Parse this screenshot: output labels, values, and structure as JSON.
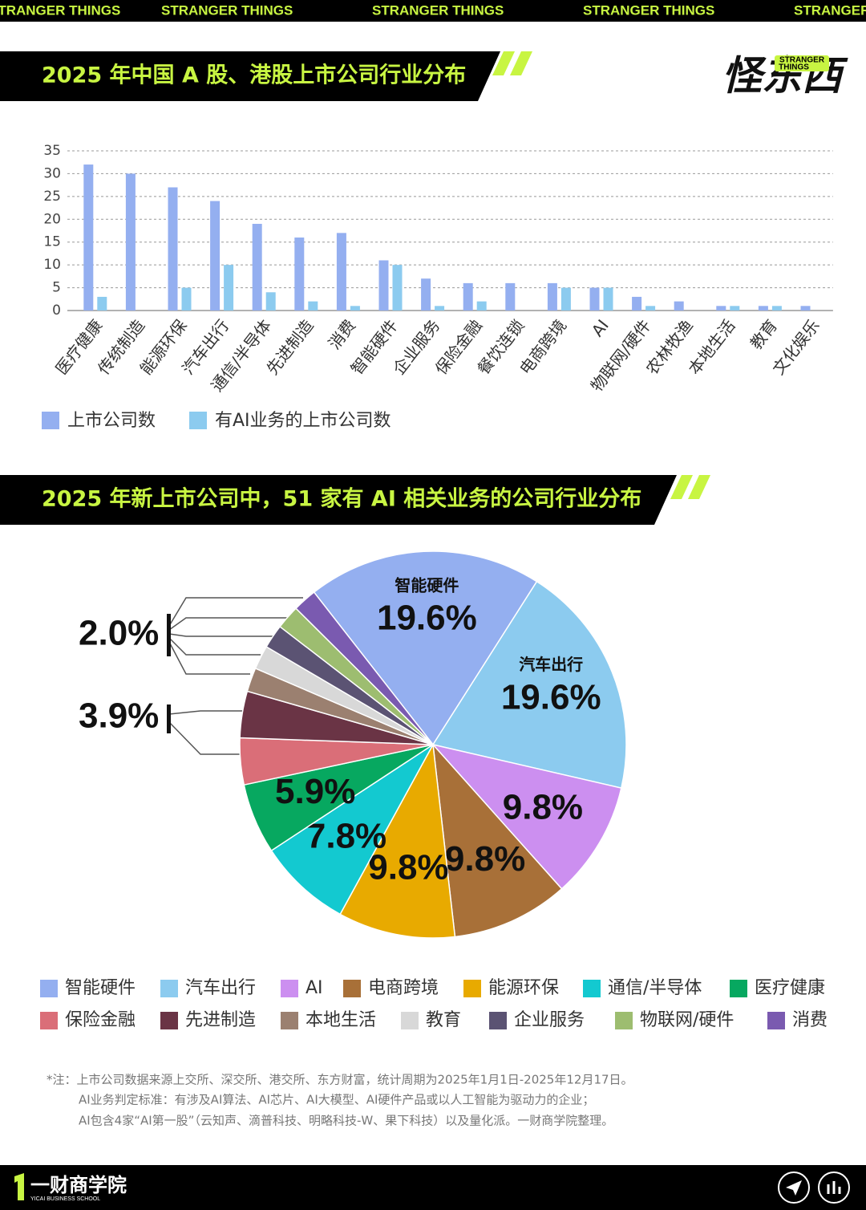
{
  "banner": "STRANGER THINGS",
  "logo": {
    "name": "怪东西",
    "tag": [
      "STRANGER",
      "THINGS"
    ]
  },
  "chart_data": [
    {
      "type": "bar",
      "title": "2025 年中国 A 股、港股上市公司行业分布",
      "categories": [
        "医疗健康",
        "传统制造",
        "能源环保",
        "汽车出行",
        "通信/半导体",
        "先进制造",
        "消费",
        "智能硬件",
        "企业服务",
        "保险金融",
        "餐饮连锁",
        "电商跨境",
        "AI",
        "物联网/硬件",
        "农林牧渔",
        "本地生活",
        "教育",
        "文化娱乐"
      ],
      "series": [
        {
          "name": "上市公司数",
          "color": "#94aff0",
          "values": [
            32,
            30,
            27,
            24,
            19,
            16,
            17,
            11,
            7,
            6,
            6,
            6,
            5,
            3,
            2,
            1,
            1,
            1
          ]
        },
        {
          "name": "有AI业务的上市公司数",
          "color": "#8ccbef",
          "values": [
            3,
            0,
            5,
            10,
            4,
            2,
            1,
            10,
            1,
            2,
            0,
            5,
            5,
            1,
            0,
            1,
            1,
            0
          ]
        }
      ],
      "ylim": [
        0,
        35
      ],
      "yticks": [
        0,
        5,
        10,
        15,
        20,
        25,
        30,
        35
      ],
      "grid": true
    },
    {
      "type": "pie",
      "title": "2025 年新上市公司中，51 家有 AI 相关业务的公司行业分布",
      "categories": [
        "智能硬件",
        "汽车出行",
        "AI",
        "电商跨境",
        "能源环保",
        "通信/半导体",
        "医疗健康",
        "保险金融",
        "先进制造",
        "本地生活",
        "教育",
        "企业服务",
        "物联网/硬件",
        "消费"
      ],
      "values": [
        19.6,
        19.6,
        9.8,
        9.8,
        9.8,
        7.8,
        5.9,
        3.9,
        3.9,
        2,
        2,
        2,
        2,
        2
      ],
      "value_labels": [
        "19.6%",
        "19.6%",
        "9.8%",
        "9.8%",
        "9.8%",
        "7.8%",
        "5.9%",
        "3.9%",
        null,
        "2.0%",
        null,
        null,
        null,
        null
      ],
      "colors": [
        "#94aff0",
        "#8ccbef",
        "#cc8ff0",
        "#a87038",
        "#e8aa00",
        "#13c9d0",
        "#07a860",
        "#da6e78",
        "#6a3445",
        "#9b8070",
        "#d8d8d8",
        "#5b5373",
        "#9dbd70",
        "#7a5ab0"
      ]
    }
  ],
  "notes": [
    "*注：上市公司数据来源上交所、深交所、港交所、东方财富，统计周期为2025年1月1日-2025年12月17日。",
    "AI业务判定标准：有涉及AI算法、AI芯片、AI大模型、AI硬件产品或以人工智能为驱动力的企业；",
    "AI包含4家“AI第一股”（云知声、滴普科技、明略科技-W、果下科技）以及量化派。一财商学院整理。"
  ],
  "footer": {
    "name": "一财商学院",
    "tag": "YICAI BUSINESS SCHOOL"
  }
}
